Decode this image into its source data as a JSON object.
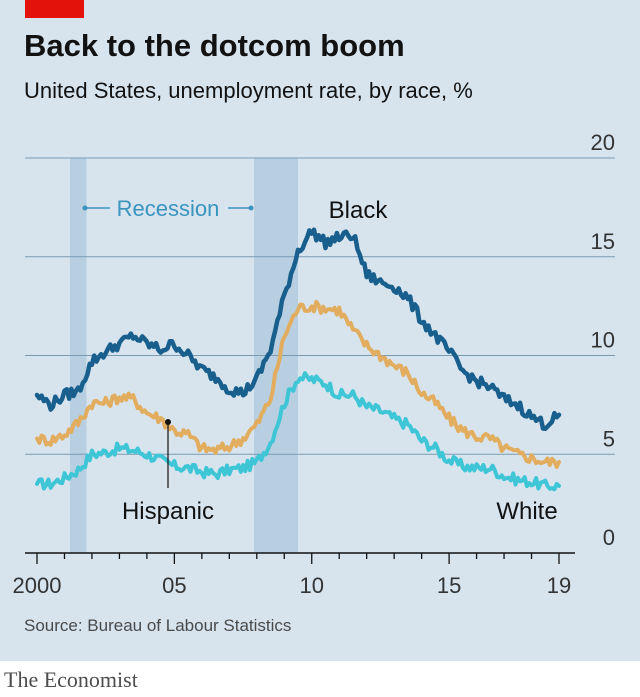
{
  "header": {
    "title": "Back to the dotcom boom",
    "subtitle": "United States, unemployment rate, by race,  %"
  },
  "footer": {
    "source": "Source: Bureau of Labour Statistics",
    "brand": "The Economist"
  },
  "colors": {
    "background": "#d7e4ee",
    "recession": "#b7cfe1",
    "black": "#185f8e",
    "hispanic": "#e2ad5e",
    "white": "#3ec6d7",
    "accent": "#e3120b"
  },
  "chart_data": {
    "type": "line",
    "x_range": [
      1999.9,
      2019.1
    ],
    "ylim": [
      0,
      20
    ],
    "y_ticks": [
      0,
      5,
      10,
      15,
      20
    ],
    "y_tick_labels": [
      "0",
      "5",
      "10",
      "15",
      "20"
    ],
    "y_axis_side": "right",
    "grid": true,
    "x_tick_labels": [
      {
        "x": 2000,
        "label": "2000"
      },
      {
        "x": 2005,
        "label": "05"
      },
      {
        "x": 2010,
        "label": "10"
      },
      {
        "x": 2015,
        "label": "15"
      },
      {
        "x": 2019,
        "label": "19"
      }
    ],
    "recessions": [
      {
        "start": 2001.2,
        "end": 2001.8
      },
      {
        "start": 2007.9,
        "end": 2009.5
      }
    ],
    "recession_label": "Recession",
    "series": [
      {
        "name": "Black",
        "color_key": "black",
        "points": [
          [
            2000.0,
            8.0
          ],
          [
            2000.5,
            7.5
          ],
          [
            2001.0,
            8.0
          ],
          [
            2001.5,
            8.2
          ],
          [
            2002.0,
            9.7
          ],
          [
            2002.5,
            10.2
          ],
          [
            2003.0,
            10.6
          ],
          [
            2003.5,
            11.0
          ],
          [
            2004.0,
            10.6
          ],
          [
            2004.5,
            10.3
          ],
          [
            2005.0,
            10.6
          ],
          [
            2005.5,
            10.0
          ],
          [
            2006.0,
            9.3
          ],
          [
            2006.5,
            8.9
          ],
          [
            2007.0,
            8.3
          ],
          [
            2007.5,
            8.1
          ],
          [
            2008.0,
            8.8
          ],
          [
            2008.5,
            10.3
          ],
          [
            2009.0,
            13.0
          ],
          [
            2009.5,
            15.3
          ],
          [
            2010.0,
            16.3
          ],
          [
            2010.5,
            15.7
          ],
          [
            2011.0,
            16.0
          ],
          [
            2011.5,
            16.1
          ],
          [
            2012.0,
            14.1
          ],
          [
            2012.5,
            13.7
          ],
          [
            2013.0,
            13.5
          ],
          [
            2013.5,
            12.9
          ],
          [
            2014.0,
            11.8
          ],
          [
            2014.5,
            11.0
          ],
          [
            2015.0,
            10.2
          ],
          [
            2015.5,
            9.2
          ],
          [
            2016.0,
            8.7
          ],
          [
            2016.5,
            8.4
          ],
          [
            2017.0,
            7.8
          ],
          [
            2017.5,
            7.5
          ],
          [
            2018.0,
            6.9
          ],
          [
            2018.5,
            6.5
          ],
          [
            2019.0,
            7.0
          ]
        ]
      },
      {
        "name": "Hispanic",
        "color_key": "hispanic",
        "points": [
          [
            2000.0,
            5.8
          ],
          [
            2000.5,
            5.7
          ],
          [
            2001.0,
            6.0
          ],
          [
            2001.5,
            6.6
          ],
          [
            2002.0,
            7.6
          ],
          [
            2002.5,
            7.6
          ],
          [
            2003.0,
            7.9
          ],
          [
            2003.5,
            7.8
          ],
          [
            2004.0,
            7.1
          ],
          [
            2004.5,
            6.8
          ],
          [
            2005.0,
            6.2
          ],
          [
            2005.5,
            6.0
          ],
          [
            2006.0,
            5.3
          ],
          [
            2006.5,
            5.2
          ],
          [
            2007.0,
            5.4
          ],
          [
            2007.5,
            5.8
          ],
          [
            2008.0,
            6.5
          ],
          [
            2008.5,
            7.8
          ],
          [
            2009.0,
            11.0
          ],
          [
            2009.5,
            12.4
          ],
          [
            2010.0,
            12.5
          ],
          [
            2010.5,
            12.4
          ],
          [
            2011.0,
            12.3
          ],
          [
            2011.5,
            11.3
          ],
          [
            2012.0,
            10.5
          ],
          [
            2012.5,
            10.0
          ],
          [
            2013.0,
            9.5
          ],
          [
            2013.5,
            9.1
          ],
          [
            2014.0,
            8.1
          ],
          [
            2014.5,
            7.6
          ],
          [
            2015.0,
            6.8
          ],
          [
            2015.5,
            6.2
          ],
          [
            2016.0,
            5.9
          ],
          [
            2016.5,
            5.8
          ],
          [
            2017.0,
            5.3
          ],
          [
            2017.5,
            5.0
          ],
          [
            2018.0,
            4.8
          ],
          [
            2018.5,
            4.6
          ],
          [
            2019.0,
            4.6
          ]
        ]
      },
      {
        "name": "White",
        "color_key": "white",
        "points": [
          [
            2000.0,
            3.5
          ],
          [
            2000.5,
            3.5
          ],
          [
            2001.0,
            3.8
          ],
          [
            2001.5,
            4.2
          ],
          [
            2002.0,
            5.0
          ],
          [
            2002.5,
            5.1
          ],
          [
            2003.0,
            5.3
          ],
          [
            2003.5,
            5.2
          ],
          [
            2004.0,
            5.0
          ],
          [
            2004.5,
            4.7
          ],
          [
            2005.0,
            4.4
          ],
          [
            2005.5,
            4.3
          ],
          [
            2006.0,
            4.1
          ],
          [
            2006.5,
            4.0
          ],
          [
            2007.0,
            4.2
          ],
          [
            2007.5,
            4.3
          ],
          [
            2008.0,
            4.6
          ],
          [
            2008.5,
            5.6
          ],
          [
            2009.0,
            7.6
          ],
          [
            2009.5,
            8.9
          ],
          [
            2010.0,
            8.8
          ],
          [
            2010.5,
            8.6
          ],
          [
            2011.0,
            8.0
          ],
          [
            2011.5,
            8.0
          ],
          [
            2012.0,
            7.4
          ],
          [
            2012.5,
            7.2
          ],
          [
            2013.0,
            6.8
          ],
          [
            2013.5,
            6.5
          ],
          [
            2014.0,
            5.7
          ],
          [
            2014.5,
            5.3
          ],
          [
            2015.0,
            4.7
          ],
          [
            2015.5,
            4.4
          ],
          [
            2016.0,
            4.3
          ],
          [
            2016.5,
            4.3
          ],
          [
            2017.0,
            3.9
          ],
          [
            2017.5,
            3.7
          ],
          [
            2018.0,
            3.6
          ],
          [
            2018.5,
            3.4
          ],
          [
            2019.0,
            3.4
          ]
        ]
      }
    ],
    "annotations": {
      "black_label": "Black",
      "hispanic_label": "Hispanic",
      "white_label": "White"
    }
  }
}
